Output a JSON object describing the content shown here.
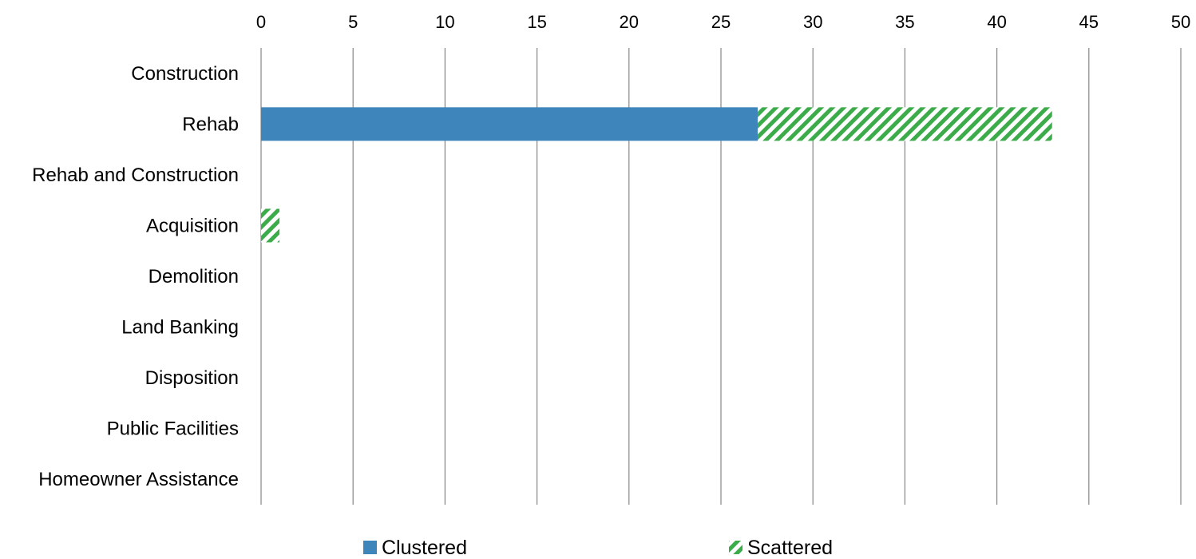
{
  "chart_data": {
    "type": "bar",
    "orientation": "horizontal",
    "stacked": true,
    "x_axis_position": "top",
    "xlim": [
      0,
      50
    ],
    "x_ticks": [
      0,
      5,
      10,
      15,
      20,
      25,
      30,
      35,
      40,
      45,
      50
    ],
    "grid": "vertical",
    "legend_position": "bottom",
    "categories": [
      "Construction",
      "Rehab",
      "Rehab and Construction",
      "Acquisition",
      "Demolition",
      "Land Banking",
      "Disposition",
      "Public Facilities",
      "Homeowner Assistance"
    ],
    "series": [
      {
        "name": "Clustered",
        "values": [
          0,
          27,
          0,
          0,
          0,
          0,
          0,
          0,
          0
        ],
        "color": "#3d85bb",
        "fill": "solid"
      },
      {
        "name": "Scattered",
        "values": [
          0,
          16,
          0,
          1,
          0,
          0,
          0,
          0,
          0
        ],
        "color": "#3cab4a",
        "fill": "diagonal-hatch"
      }
    ]
  }
}
